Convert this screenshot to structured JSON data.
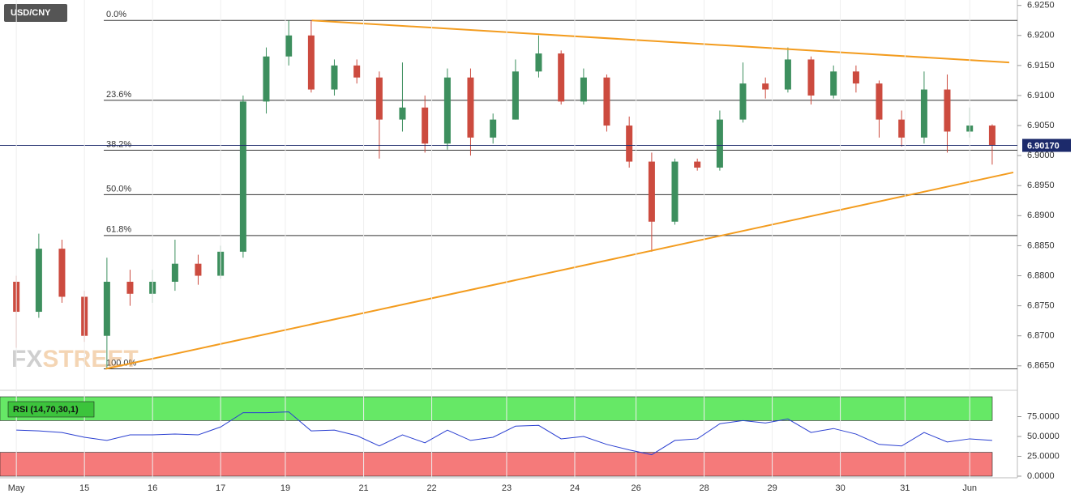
{
  "chart_data": [
    {
      "type": "candlestick",
      "title": "USD/CNY",
      "watermark": [
        "FX",
        "STREET"
      ],
      "x": [
        0,
        0.33,
        0.67,
        1,
        1.33,
        1.67,
        2,
        2.33,
        2.67,
        3,
        3.33,
        3.67,
        4,
        4.33,
        4.67,
        5,
        5.33,
        5.67,
        6,
        6.33,
        6.67,
        7,
        7.33,
        7.67,
        8,
        8.33,
        8.67,
        9,
        9.33,
        9.67,
        10,
        10.33,
        10.67,
        11,
        11.33,
        11.67,
        12,
        12.33,
        12.67,
        13,
        13.33,
        13.67,
        14,
        14.33
      ],
      "open": [
        6.879,
        6.874,
        6.8845,
        6.8765,
        6.87,
        6.879,
        6.877,
        6.879,
        6.882,
        6.88,
        6.884,
        6.909,
        6.9165,
        6.92,
        6.911,
        6.915,
        6.913,
        6.906,
        6.908,
        6.902,
        6.913,
        6.903,
        6.906,
        6.914,
        6.917,
        6.909,
        6.913,
        6.905,
        6.899,
        6.889,
        6.899,
        6.898,
        6.906,
        6.912,
        6.911,
        6.916,
        6.91,
        6.914,
        6.912,
        6.906,
        6.903,
        6.911,
        6.904,
        6.905
      ],
      "high": [
        6.88,
        6.887,
        6.886,
        6.8775,
        6.883,
        6.881,
        6.881,
        6.886,
        6.8835,
        6.885,
        6.91,
        6.918,
        6.9225,
        6.9225,
        6.916,
        6.916,
        6.914,
        6.9155,
        6.91,
        6.9145,
        6.9145,
        6.907,
        6.916,
        6.92,
        6.9175,
        6.9145,
        6.9135,
        6.9065,
        6.9005,
        6.8995,
        6.8995,
        6.9075,
        6.9155,
        6.913,
        6.918,
        6.9165,
        6.915,
        6.915,
        6.9125,
        6.9075,
        6.914,
        6.9135,
        6.908,
        6.9052
      ],
      "low": [
        6.868,
        6.873,
        6.8755,
        6.869,
        6.8645,
        6.875,
        6.8755,
        6.8775,
        6.8785,
        6.8795,
        6.883,
        6.907,
        6.915,
        6.9105,
        6.91,
        6.912,
        6.8995,
        6.904,
        6.9005,
        6.901,
        6.9,
        6.902,
        6.906,
        6.913,
        6.9085,
        6.9085,
        6.904,
        6.898,
        6.884,
        6.8885,
        6.8975,
        6.8975,
        6.9055,
        6.9095,
        6.9105,
        6.9085,
        6.9095,
        6.9105,
        6.903,
        6.9015,
        6.902,
        6.9005,
        6.903,
        6.8985
      ],
      "close": [
        6.874,
        6.8845,
        6.8765,
        6.87,
        6.879,
        6.877,
        6.879,
        6.882,
        6.88,
        6.884,
        6.909,
        6.9165,
        6.92,
        6.911,
        6.915,
        6.913,
        6.906,
        6.908,
        6.902,
        6.913,
        6.903,
        6.906,
        6.914,
        6.917,
        6.909,
        6.913,
        6.905,
        6.899,
        6.889,
        6.899,
        6.898,
        6.906,
        6.912,
        6.911,
        6.916,
        6.91,
        6.914,
        6.912,
        6.906,
        6.903,
        6.911,
        6.904,
        6.905,
        6.9017
      ],
      "up_color": "#3d8f5e",
      "down_color": "#cc4b3f",
      "xlim": [
        -0.24,
        14.7
      ],
      "ylim": [
        6.8612,
        6.9259
      ],
      "yticks": [
        {
          "value": 6.865,
          "label": "6.8650"
        },
        {
          "value": 6.87,
          "label": "6.8700"
        },
        {
          "value": 6.875,
          "label": "6.8750"
        },
        {
          "value": 6.88,
          "label": "6.8800"
        },
        {
          "value": 6.885,
          "label": "6.8850"
        },
        {
          "value": 6.89,
          "label": "6.8900"
        },
        {
          "value": 6.895,
          "label": "6.8950"
        },
        {
          "value": 6.9,
          "label": "6.9000"
        },
        {
          "value": 6.905,
          "label": "6.9050"
        },
        {
          "value": 6.91,
          "label": "6.9100"
        },
        {
          "value": 6.915,
          "label": "6.9150"
        },
        {
          "value": 6.92,
          "label": "6.9200"
        },
        {
          "value": 6.925,
          "label": "6.9250"
        }
      ],
      "fib_levels": [
        {
          "label": "0.0%",
          "value": 6.9225
        },
        {
          "label": "23.6%",
          "value": 6.9092
        },
        {
          "label": "38.2%",
          "value": 6.9009
        },
        {
          "label": "50.0%",
          "value": 6.8935
        },
        {
          "label": "61.8%",
          "value": 6.8867
        },
        {
          "label": "100.0%",
          "value": 6.8645
        }
      ],
      "trendlines": [
        {
          "x": [
            4.34,
            14.58
          ],
          "y": [
            6.9225,
            6.9155
          ]
        },
        {
          "x": [
            1.31,
            14.64
          ],
          "y": [
            6.8645,
            6.8972
          ]
        }
      ],
      "trendline_color": "#f39c1f",
      "last_price": {
        "value": 6.9017,
        "label": "6.90170"
      },
      "last_price_color": "#1c2a6b"
    },
    {
      "type": "line",
      "title": "RSI (14,70,30,1)",
      "color": "#2a3fd1",
      "x": [
        0,
        0.33,
        0.67,
        1,
        1.33,
        1.67,
        2,
        2.33,
        2.67,
        3,
        3.33,
        3.67,
        4,
        4.33,
        4.67,
        5,
        5.33,
        5.67,
        6,
        6.33,
        6.67,
        7,
        7.33,
        7.67,
        8,
        8.33,
        8.67,
        9,
        9.33,
        9.67,
        10,
        10.33,
        10.67,
        11,
        11.33,
        11.67,
        12,
        12.33,
        12.67,
        13,
        13.33,
        13.67,
        14,
        14.33
      ],
      "values": [
        58,
        57,
        55,
        49,
        45,
        52,
        52,
        53,
        52,
        62,
        80,
        80,
        81,
        57,
        58,
        51,
        38,
        52,
        42,
        58,
        45,
        49,
        63,
        64,
        47,
        50,
        40,
        33,
        27,
        45,
        47,
        66,
        70,
        67,
        72,
        55,
        60,
        53,
        40,
        38,
        55,
        43,
        47,
        45
      ],
      "bands": [
        {
          "from": 70,
          "to": 100,
          "color": "#66e866"
        },
        {
          "from": 0,
          "to": 30,
          "color": "#f57a7a"
        }
      ],
      "xlim": [
        -0.24,
        14.7
      ],
      "ylim": [
        0,
        100
      ],
      "yticks": [
        {
          "value": 0,
          "label": "0.0000"
        },
        {
          "value": 25,
          "label": "25.0000"
        },
        {
          "value": 50,
          "label": "50.0000"
        },
        {
          "value": 75,
          "label": "75.0000"
        }
      ],
      "xticks": [
        {
          "value": 0,
          "label": "May"
        },
        {
          "value": 1,
          "label": "15"
        },
        {
          "value": 2,
          "label": "16"
        },
        {
          "value": 3,
          "label": "17"
        },
        {
          "value": 3.95,
          "label": "19"
        },
        {
          "value": 5.1,
          "label": "21"
        },
        {
          "value": 6.1,
          "label": "22"
        },
        {
          "value": 7.2,
          "label": "23"
        },
        {
          "value": 8.2,
          "label": "24"
        },
        {
          "value": 9.1,
          "label": "26"
        },
        {
          "value": 10.1,
          "label": "28"
        },
        {
          "value": 11.1,
          "label": "29"
        },
        {
          "value": 12.1,
          "label": "30"
        },
        {
          "value": 13.05,
          "label": "31"
        },
        {
          "value": 14,
          "label": "Jun"
        }
      ],
      "grid": true
    }
  ]
}
